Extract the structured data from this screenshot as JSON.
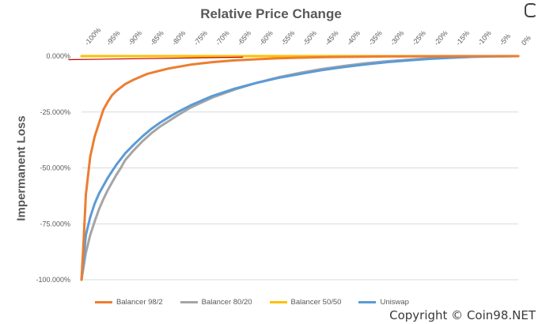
{
  "watermark": "Copyright © Coin98.NET",
  "chart_data": {
    "type": "line",
    "title": "Relative Price Change",
    "xlabel": "",
    "ylabel": "Impermanent Loss",
    "x_ticks": [
      "-100%",
      "-95%",
      "-90%",
      "-85%",
      "-80%",
      "-75%",
      "-70%",
      "-65%",
      "-60%",
      "-55%",
      "-50%",
      "-45%",
      "-40%",
      "-35%",
      "-30%",
      "-25%",
      "-20%",
      "-15%",
      "-10%",
      "-5%",
      "0%"
    ],
    "y_ticks": [
      "0.000%",
      "-25.000%",
      "-50.000%",
      "-75.000%",
      "-100.000%"
    ],
    "ylim": [
      -100,
      0
    ],
    "xlim": [
      -100,
      0
    ],
    "grid": true,
    "legend_position": "bottom",
    "series": [
      {
        "name": "Balancer 98/2",
        "color": "#ED7D31",
        "x": [
          -100,
          -99.5,
          -99,
          -98,
          -97,
          -96,
          -95,
          -94,
          -93,
          -92,
          -90,
          -88,
          -85,
          -80,
          -75,
          -70,
          -65,
          -60,
          -55,
          -50,
          -45,
          -40,
          -35,
          -30,
          -25,
          -20,
          -15,
          -10,
          -5,
          0
        ],
        "values": [
          -100,
          -82,
          -62,
          -45,
          -36,
          -30,
          -24,
          -20.5,
          -17.5,
          -15.5,
          -12.5,
          -10.5,
          -8,
          -5.5,
          -3.8,
          -2.7,
          -1.9,
          -1.4,
          -1,
          -0.7,
          -0.5,
          -0.35,
          -0.25,
          -0.15,
          -0.1,
          -0.06,
          -0.03,
          -0.01,
          0,
          0
        ]
      },
      {
        "name": "Balancer 80/20",
        "color": "#A5A5A5",
        "x": [
          -100,
          -99,
          -98,
          -97,
          -96,
          -95,
          -94,
          -93,
          -92,
          -91,
          -90,
          -88,
          -86,
          -84,
          -82,
          -80,
          -78,
          -75,
          -70,
          -65,
          -60,
          -55,
          -50,
          -45,
          -40,
          -35,
          -30,
          -25,
          -20,
          -15,
          -10,
          -5,
          0
        ],
        "values": [
          -100,
          -88,
          -80,
          -74,
          -68.5,
          -64,
          -60,
          -56.5,
          -53,
          -50,
          -46.5,
          -42,
          -38,
          -34.5,
          -31.5,
          -29,
          -26.5,
          -23,
          -18.5,
          -15,
          -12,
          -9.5,
          -7.5,
          -5.8,
          -4.4,
          -3.2,
          -2.3,
          -1.6,
          -1,
          -0.6,
          -0.3,
          -0.1,
          0
        ]
      },
      {
        "name": "Balancer 50/50",
        "color": "#FFC000",
        "x": [
          -100,
          0
        ],
        "values": [
          0,
          0
        ]
      },
      {
        "name": "Uniswap",
        "color": "#5B9BD5",
        "x": [
          -100,
          -99,
          -98,
          -97,
          -96,
          -95,
          -94,
          -93,
          -92,
          -90,
          -88,
          -86,
          -84,
          -82,
          -80,
          -78,
          -75,
          -70,
          -65,
          -60,
          -55,
          -50,
          -45,
          -40,
          -35,
          -30,
          -25,
          -20,
          -15,
          -10,
          -5,
          0
        ],
        "values": [
          -100,
          -80,
          -72,
          -66,
          -61.5,
          -58,
          -54.5,
          -51.5,
          -48.5,
          -43.5,
          -39.5,
          -35.8,
          -32.5,
          -29.7,
          -27.3,
          -25,
          -22,
          -17.8,
          -14.6,
          -12,
          -9.8,
          -8,
          -6.3,
          -4.9,
          -3.7,
          -2.7,
          -1.9,
          -1.2,
          -0.7,
          -0.3,
          -0.1,
          0
        ]
      }
    ],
    "annotation_line": {
      "color": "#C00000",
      "x": [
        -103,
        -63
      ],
      "values": [
        -1.6,
        -0.5
      ]
    }
  }
}
